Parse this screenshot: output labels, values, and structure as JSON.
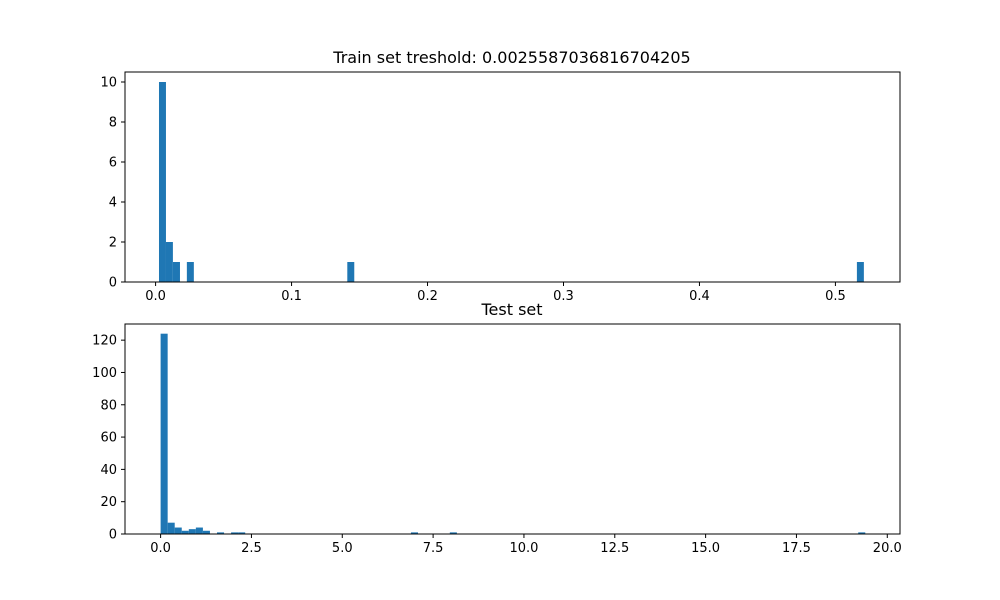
{
  "colors": {
    "bar": "#1f77b4",
    "axis": "#000000",
    "background": "#ffffff"
  },
  "chart_data": [
    {
      "type": "bar",
      "title": "Train set treshold: 0.0025587036816704205",
      "xlabel": "",
      "ylabel": "",
      "xlim": [
        -0.0225,
        0.5475
      ],
      "ylim": [
        0,
        10.5
      ],
      "grid": false,
      "bin_width": 0.00513,
      "xticks": [
        0.0,
        0.1,
        0.2,
        0.3,
        0.4,
        0.5
      ],
      "xtick_labels": [
        "0.0",
        "0.1",
        "0.2",
        "0.3",
        "0.4",
        "0.5"
      ],
      "yticks": [
        0,
        2,
        4,
        6,
        8,
        10
      ],
      "ytick_labels": [
        "0",
        "2",
        "4",
        "6",
        "8",
        "10"
      ],
      "bins": [
        {
          "x": 0.0025,
          "count": 10
        },
        {
          "x": 0.0076,
          "count": 2
        },
        {
          "x": 0.0128,
          "count": 1
        },
        {
          "x": 0.023,
          "count": 1
        },
        {
          "x": 0.141,
          "count": 1
        },
        {
          "x": 0.5158,
          "count": 1
        }
      ]
    },
    {
      "type": "bar",
      "title": "Test set",
      "xlabel": "",
      "ylabel": "",
      "xlim": [
        -0.98,
        20.35
      ],
      "ylim": [
        0,
        130
      ],
      "grid": false,
      "bin_width": 0.194,
      "xticks": [
        0.0,
        2.5,
        5.0,
        7.5,
        10.0,
        12.5,
        15.0,
        17.5,
        20.0
      ],
      "xtick_labels": [
        "0.0",
        "2.5",
        "5.0",
        "7.5",
        "10.0",
        "12.5",
        "15.0",
        "17.5",
        "20.0"
      ],
      "yticks": [
        0,
        20,
        40,
        60,
        80,
        100,
        120
      ],
      "ytick_labels": [
        "0",
        "20",
        "40",
        "60",
        "80",
        "100",
        "120"
      ],
      "bins": [
        {
          "x": 0.0,
          "count": 124
        },
        {
          "x": 0.194,
          "count": 7
        },
        {
          "x": 0.388,
          "count": 4
        },
        {
          "x": 0.582,
          "count": 2
        },
        {
          "x": 0.776,
          "count": 3
        },
        {
          "x": 0.97,
          "count": 4
        },
        {
          "x": 1.164,
          "count": 2
        },
        {
          "x": 1.552,
          "count": 1
        },
        {
          "x": 1.94,
          "count": 1
        },
        {
          "x": 2.134,
          "count": 1
        },
        {
          "x": 6.89,
          "count": 1
        },
        {
          "x": 7.96,
          "count": 1
        },
        {
          "x": 19.2,
          "count": 1
        }
      ]
    }
  ]
}
